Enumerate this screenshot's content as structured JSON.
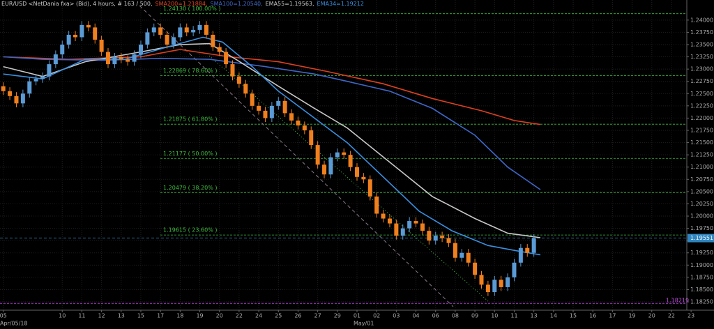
{
  "chart_data": {
    "type": "candlestick",
    "title": "EUR/USD <NetDania fxa> (Bid), 4 hours, # 163 / 500,",
    "up_color": "#5b9bd5",
    "down_color": "#f07f1e",
    "xlim": [
      -1,
      217
    ],
    "ylim": [
      1.1808,
      1.2441
    ],
    "grid": true,
    "yticks": [
      {
        "value": 1.1825,
        "label": "1.18250"
      },
      {
        "value": 1.185,
        "label": "1.18500"
      },
      {
        "value": 1.1875,
        "label": "1.18750"
      },
      {
        "value": 1.19,
        "label": "1.19000"
      },
      {
        "value": 1.1925,
        "label": "1.19250"
      },
      {
        "value": 1.195,
        "label": "1.19500"
      },
      {
        "value": 1.1975,
        "label": "1.19750"
      },
      {
        "value": 1.2,
        "label": "1.20000"
      },
      {
        "value": 1.2025,
        "label": "1.20250"
      },
      {
        "value": 1.205,
        "label": "1.20500"
      },
      {
        "value": 1.2075,
        "label": "1.20750"
      },
      {
        "value": 1.21,
        "label": "1.21000"
      },
      {
        "value": 1.2125,
        "label": "1.21250"
      },
      {
        "value": 1.215,
        "label": "1.21500"
      },
      {
        "value": 1.2175,
        "label": "1.21750"
      },
      {
        "value": 1.22,
        "label": "1.22000"
      },
      {
        "value": 1.2225,
        "label": "1.22250"
      },
      {
        "value": 1.225,
        "label": "1.22500"
      },
      {
        "value": 1.2275,
        "label": "1.22750"
      },
      {
        "value": 1.23,
        "label": "1.23000"
      },
      {
        "value": 1.2325,
        "label": "1.23250"
      },
      {
        "value": 1.235,
        "label": "1.23500"
      },
      {
        "value": 1.2375,
        "label": "1.23750"
      },
      {
        "value": 1.24,
        "label": "1.24000"
      }
    ],
    "xticks": [
      {
        "value": 0,
        "label": "05"
      },
      {
        "value": 18,
        "label": "10"
      },
      {
        "value": 24,
        "label": "11"
      },
      {
        "value": 30,
        "label": "12"
      },
      {
        "value": 36,
        "label": "13"
      },
      {
        "value": 42,
        "label": "15"
      },
      {
        "value": 48,
        "label": "17"
      },
      {
        "value": 54,
        "label": "18"
      },
      {
        "value": 60,
        "label": "19"
      },
      {
        "value": 66,
        "label": "20"
      },
      {
        "value": 72,
        "label": "22"
      },
      {
        "value": 78,
        "label": "24"
      },
      {
        "value": 84,
        "label": "25"
      },
      {
        "value": 90,
        "label": "26"
      },
      {
        "value": 96,
        "label": "27"
      },
      {
        "value": 102,
        "label": "29"
      },
      {
        "value": 108,
        "label": "01"
      },
      {
        "value": 114,
        "label": "02"
      },
      {
        "value": 120,
        "label": "03"
      },
      {
        "value": 126,
        "label": "04"
      },
      {
        "value": 132,
        "label": "06"
      },
      {
        "value": 138,
        "label": "08"
      },
      {
        "value": 144,
        "label": "09"
      },
      {
        "value": 150,
        "label": "10"
      },
      {
        "value": 156,
        "label": "11"
      },
      {
        "value": 162,
        "label": "13"
      },
      {
        "value": 168,
        "label": "14"
      },
      {
        "value": 174,
        "label": "15"
      },
      {
        "value": 180,
        "label": "16"
      },
      {
        "value": 186,
        "label": "17"
      },
      {
        "value": 192,
        "label": "19"
      },
      {
        "value": 198,
        "label": "20"
      },
      {
        "value": 204,
        "label": "22"
      },
      {
        "value": 210,
        "label": "23"
      }
    ],
    "x_sublabels": [
      {
        "value": 0,
        "label": "Apr/05/18"
      },
      {
        "value": 108,
        "label": "May/01"
      }
    ],
    "x": [
      0,
      2,
      4,
      6,
      8,
      10,
      12,
      14,
      16,
      18,
      20,
      22,
      24,
      26,
      28,
      30,
      32,
      34,
      36,
      38,
      40,
      42,
      44,
      46,
      48,
      50,
      52,
      54,
      56,
      58,
      60,
      62,
      64,
      66,
      68,
      70,
      72,
      74,
      76,
      78,
      80,
      82,
      84,
      86,
      88,
      90,
      92,
      94,
      96,
      98,
      100,
      102,
      104,
      106,
      108,
      110,
      112,
      114,
      116,
      118,
      120,
      122,
      124,
      126,
      128,
      130,
      132,
      134,
      136,
      138,
      140,
      142,
      144,
      146,
      148,
      150,
      152,
      154,
      156,
      158,
      160,
      162
    ],
    "open": [
      1.2265,
      1.2255,
      1.2245,
      1.223,
      1.225,
      1.2275,
      1.228,
      1.2285,
      1.231,
      1.233,
      1.235,
      1.237,
      1.2365,
      1.239,
      1.2385,
      1.236,
      1.2335,
      1.231,
      1.2325,
      1.232,
      1.2315,
      1.233,
      1.235,
      1.2375,
      1.2385,
      1.237,
      1.235,
      1.2365,
      1.2385,
      1.2375,
      1.238,
      1.239,
      1.237,
      1.2345,
      1.2335,
      1.231,
      1.2285,
      1.227,
      1.225,
      1.2225,
      1.2215,
      1.22,
      1.2225,
      1.2235,
      1.221,
      1.2195,
      1.2185,
      1.2175,
      1.2145,
      1.2105,
      1.2085,
      1.212,
      1.213,
      1.2125,
      1.21,
      1.208,
      1.2075,
      1.204,
      1.2005,
      1.1995,
      1.1985,
      1.196,
      1.1975,
      1.199,
      1.1985,
      1.197,
      1.195,
      1.196,
      1.1955,
      1.1945,
      1.1915,
      1.1925,
      1.1905,
      1.188,
      1.186,
      1.1845,
      1.187,
      1.1855,
      1.1875,
      1.1905,
      1.1935,
      1.1925
    ],
    "high": [
      1.2273,
      1.2263,
      1.2253,
      1.2258,
      1.2283,
      1.2288,
      1.2293,
      1.2318,
      1.2338,
      1.2358,
      1.2378,
      1.2378,
      1.2398,
      1.2398,
      1.2393,
      1.2368,
      1.2343,
      1.2333,
      1.2333,
      1.2328,
      1.2338,
      1.2358,
      1.2383,
      1.2393,
      1.2393,
      1.2378,
      1.2373,
      1.2393,
      1.2393,
      1.2388,
      1.2398,
      1.2398,
      1.2378,
      1.2353,
      1.2343,
      1.2318,
      1.2293,
      1.2278,
      1.2258,
      1.2233,
      1.2223,
      1.2233,
      1.2243,
      1.2243,
      1.2218,
      1.2203,
      1.2193,
      1.2183,
      1.2153,
      1.2113,
      1.2128,
      1.2138,
      1.2138,
      1.2133,
      1.2108,
      1.2088,
      1.2083,
      1.2048,
      1.2013,
      1.2003,
      1.1993,
      1.1983,
      1.1998,
      1.1998,
      1.1993,
      1.1978,
      1.1968,
      1.1968,
      1.1963,
      1.1953,
      1.1933,
      1.1933,
      1.1913,
      1.1888,
      1.1868,
      1.1878,
      1.1878,
      1.1883,
      1.1913,
      1.1943,
      1.1943,
      1.1963
    ],
    "low": [
      1.2247,
      1.2237,
      1.2222,
      1.2222,
      1.2242,
      1.2267,
      1.2272,
      1.2277,
      1.2302,
      1.2322,
      1.2342,
      1.2357,
      1.2357,
      1.2377,
      1.2352,
      1.2327,
      1.2302,
      1.2302,
      1.2312,
      1.2307,
      1.2307,
      1.2322,
      1.2342,
      1.2367,
      1.2362,
      1.2342,
      1.2342,
      1.2357,
      1.2367,
      1.2367,
      1.2372,
      1.2362,
      1.2337,
      1.2327,
      1.2302,
      1.2277,
      1.2262,
      1.2242,
      1.2217,
      1.2207,
      1.2192,
      1.2192,
      1.2217,
      1.2202,
      1.2187,
      1.2177,
      1.2167,
      1.2137,
      1.2097,
      1.2077,
      1.2077,
      1.2112,
      1.2117,
      1.2092,
      1.2072,
      1.2067,
      1.2032,
      1.1997,
      1.1987,
      1.1977,
      1.1952,
      1.1952,
      1.1967,
      1.1977,
      1.1962,
      1.1942,
      1.1942,
      1.1947,
      1.1937,
      1.1907,
      1.1907,
      1.1897,
      1.1872,
      1.1852,
      1.1837,
      1.1837,
      1.1847,
      1.1847,
      1.1867,
      1.1897,
      1.1917,
      1.1917
    ],
    "close": [
      1.2255,
      1.2245,
      1.223,
      1.225,
      1.2275,
      1.228,
      1.2285,
      1.231,
      1.233,
      1.235,
      1.237,
      1.2365,
      1.239,
      1.2385,
      1.236,
      1.2335,
      1.231,
      1.2325,
      1.232,
      1.2315,
      1.233,
      1.235,
      1.2375,
      1.2385,
      1.237,
      1.235,
      1.2365,
      1.2385,
      1.2375,
      1.238,
      1.239,
      1.237,
      1.2345,
      1.2335,
      1.231,
      1.2285,
      1.227,
      1.225,
      1.2225,
      1.2215,
      1.22,
      1.2225,
      1.2235,
      1.221,
      1.2195,
      1.2185,
      1.2175,
      1.2145,
      1.2105,
      1.2085,
      1.212,
      1.213,
      1.2125,
      1.21,
      1.208,
      1.2075,
      1.204,
      1.2005,
      1.1995,
      1.1985,
      1.196,
      1.1975,
      1.199,
      1.1985,
      1.197,
      1.195,
      1.196,
      1.1955,
      1.1945,
      1.1915,
      1.1925,
      1.1905,
      1.188,
      1.186,
      1.1845,
      1.187,
      1.1855,
      1.1875,
      1.1905,
      1.1935,
      1.1925,
      1.1955
    ],
    "series": [
      {
        "name": "SMA200=1.21884,",
        "color": "#e0401e",
        "x": [
          0,
          20,
          42,
          54,
          69,
          84,
          99,
          116,
          131,
          146,
          156,
          164
        ],
        "values": [
          1.2325,
          1.232,
          1.2325,
          1.234,
          1.2325,
          1.2315,
          1.2295,
          1.227,
          1.224,
          1.2215,
          1.2195,
          1.2187
        ]
      },
      {
        "name": "SMA100=1.20540,",
        "color": "#3f66c8",
        "x": [
          0,
          12,
          31,
          48,
          63,
          80,
          95,
          105,
          118,
          131,
          144,
          154,
          164
        ],
        "values": [
          1.2325,
          1.232,
          1.2318,
          1.2322,
          1.232,
          1.2305,
          1.229,
          1.2275,
          1.2255,
          1.222,
          1.2165,
          1.21,
          1.2054
        ]
      },
      {
        "name": "EMA55=1.19563,",
        "color": "#c8c8c8",
        "x": [
          0,
          12,
          25,
          42,
          54,
          63,
          71,
          84,
          95,
          105,
          118,
          131,
          144,
          154,
          164
        ],
        "values": [
          1.2305,
          1.2285,
          1.2315,
          1.2335,
          1.235,
          1.2352,
          1.232,
          1.2265,
          1.222,
          1.218,
          1.211,
          1.204,
          1.1995,
          1.1965,
          1.1956
        ]
      },
      {
        "name": "EMA34=1.19212",
        "color": "#3a8fe0",
        "x": [
          0,
          12,
          25,
          37,
          50,
          61,
          67,
          76,
          84,
          95,
          105,
          116,
          127,
          137,
          148,
          156,
          164
        ],
        "values": [
          1.229,
          1.228,
          1.232,
          1.232,
          1.2345,
          1.2365,
          1.2355,
          1.2305,
          1.2255,
          1.22,
          1.215,
          1.208,
          1.201,
          1.197,
          1.194,
          1.193,
          1.1921
        ]
      }
    ],
    "fib_levels": [
      {
        "value": 1.2413,
        "label": "1.24130 ( 100.00% )"
      },
      {
        "value": 1.22869,
        "label": "1.22869 ( 78.60% )"
      },
      {
        "value": 1.21875,
        "label": "1.21875 ( 61.80% )"
      },
      {
        "value": 1.21177,
        "label": "1.21177 ( 50.00% )"
      },
      {
        "value": 1.20479,
        "label": "1.20479 ( 38.20% )"
      },
      {
        "value": 1.19615,
        "label": "1.19615 ( 23.60% )"
      }
    ],
    "fib_color": "#3fbf3f",
    "last_price": {
      "value": 1.19551,
      "label": "1.19551"
    },
    "low_marker": {
      "value": 1.18219,
      "label": "1.18219"
    }
  }
}
